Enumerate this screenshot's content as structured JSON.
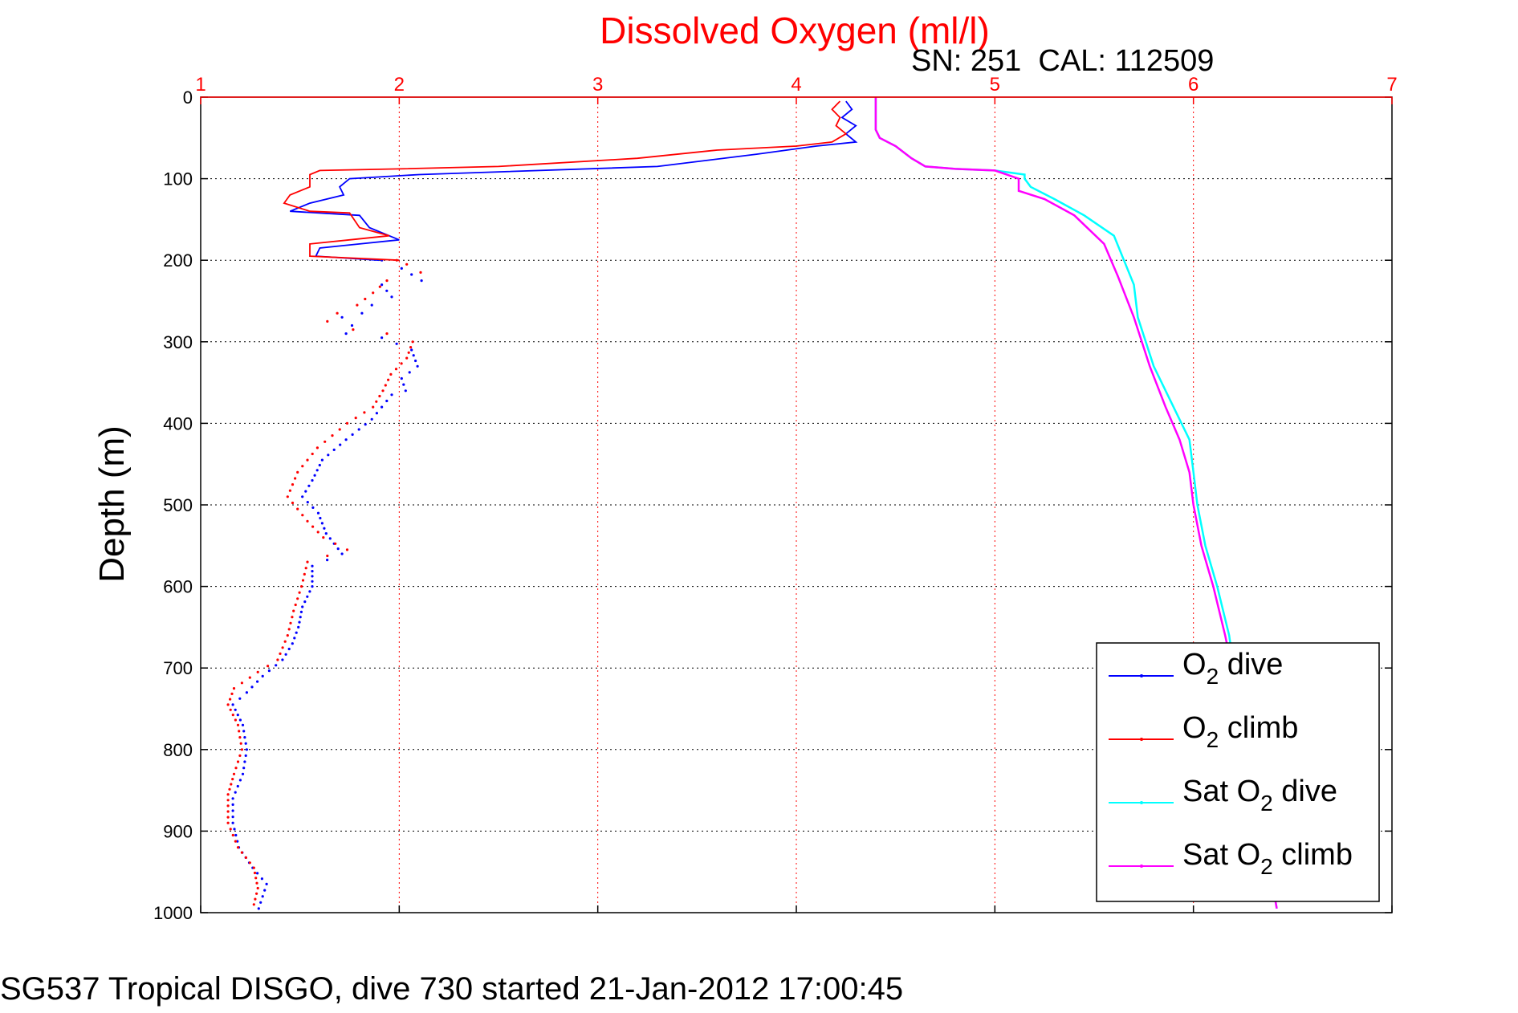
{
  "chart_data": {
    "type": "line",
    "title": "Dissolved Oxygen (ml/l)",
    "subtitle": "SN: 251  CAL: 112509",
    "xlabel": "",
    "ylabel": "Depth (m)",
    "xlim": [
      1,
      7
    ],
    "ylim": [
      0,
      1000
    ],
    "y_reversed": true,
    "x_axis_position": "top",
    "x_ticks": [
      "1",
      "2",
      "3",
      "4",
      "5",
      "6",
      "7"
    ],
    "y_ticks": [
      "0",
      "100",
      "200",
      "300",
      "400",
      "500",
      "600",
      "700",
      "800",
      "900",
      "1000"
    ],
    "grid": true,
    "legend_position": "bottom-right",
    "colors": {
      "title": "#ff0000",
      "x_ticks": "#ff0000",
      "grid_x": "#ff0000",
      "grid_y": "#000000"
    },
    "series": [
      {
        "name": "O2 dive",
        "name_prefix": "O",
        "name_sub": "2",
        "name_suffix": " dive",
        "color": "#0000ff",
        "style": "line_then_dots",
        "break_depth": 200,
        "points": [
          [
            4.25,
            5
          ],
          [
            4.28,
            15
          ],
          [
            4.23,
            25
          ],
          [
            4.3,
            35
          ],
          [
            4.25,
            45
          ],
          [
            4.3,
            55
          ],
          [
            4.1,
            60
          ],
          [
            3.8,
            70
          ],
          [
            3.3,
            85
          ],
          [
            2.1,
            95
          ],
          [
            1.75,
            100
          ],
          [
            1.7,
            110
          ],
          [
            1.72,
            120
          ],
          [
            1.55,
            130
          ],
          [
            1.45,
            140
          ],
          [
            1.8,
            145
          ],
          [
            1.85,
            160
          ],
          [
            2.0,
            175
          ],
          [
            1.8,
            180
          ],
          [
            1.6,
            185
          ],
          [
            1.58,
            195
          ],
          [
            1.9,
            200
          ],
          [
            2.0,
            210
          ],
          [
            2.1,
            225
          ],
          [
            1.9,
            230
          ],
          [
            1.95,
            245
          ],
          [
            1.85,
            255
          ],
          [
            1.8,
            265
          ],
          [
            1.7,
            270
          ],
          [
            1.75,
            280
          ],
          [
            1.72,
            290
          ],
          [
            1.9,
            295
          ],
          [
            2.05,
            310
          ],
          [
            2.08,
            330
          ],
          [
            2.0,
            345
          ],
          [
            2.02,
            360
          ],
          [
            1.95,
            365
          ],
          [
            1.85,
            395
          ],
          [
            1.72,
            420
          ],
          [
            1.6,
            445
          ],
          [
            1.55,
            470
          ],
          [
            1.5,
            490
          ],
          [
            1.58,
            510
          ],
          [
            1.62,
            535
          ],
          [
            1.7,
            560
          ],
          [
            1.55,
            575
          ],
          [
            1.55,
            600
          ],
          [
            1.5,
            625
          ],
          [
            1.48,
            650
          ],
          [
            1.45,
            670
          ],
          [
            1.4,
            690
          ],
          [
            1.3,
            710
          ],
          [
            1.22,
            730
          ],
          [
            1.15,
            745
          ],
          [
            1.2,
            770
          ],
          [
            1.22,
            800
          ],
          [
            1.2,
            830
          ],
          [
            1.15,
            860
          ],
          [
            1.15,
            890
          ],
          [
            1.18,
            920
          ],
          [
            1.25,
            945
          ],
          [
            1.32,
            965
          ],
          [
            1.3,
            980
          ],
          [
            1.28,
            995
          ]
        ]
      },
      {
        "name": "O2 climb",
        "name_prefix": "O",
        "name_sub": "2",
        "name_suffix": " climb",
        "color": "#ff0000",
        "style": "line_then_dots",
        "break_depth": 200,
        "points": [
          [
            4.22,
            5
          ],
          [
            4.18,
            15
          ],
          [
            4.22,
            25
          ],
          [
            4.2,
            35
          ],
          [
            4.25,
            45
          ],
          [
            4.18,
            55
          ],
          [
            4.0,
            60
          ],
          [
            3.6,
            65
          ],
          [
            3.2,
            75
          ],
          [
            2.5,
            85
          ],
          [
            2.0,
            88
          ],
          [
            1.6,
            90
          ],
          [
            1.55,
            95
          ],
          [
            1.55,
            110
          ],
          [
            1.45,
            120
          ],
          [
            1.42,
            130
          ],
          [
            1.55,
            140
          ],
          [
            1.75,
            142
          ],
          [
            1.8,
            160
          ],
          [
            1.95,
            170
          ],
          [
            1.75,
            175
          ],
          [
            1.55,
            180
          ],
          [
            1.55,
            195
          ],
          [
            2.0,
            200
          ],
          [
            2.05,
            205
          ],
          [
            2.12,
            215
          ],
          [
            1.95,
            225
          ],
          [
            1.88,
            240
          ],
          [
            1.8,
            255
          ],
          [
            1.7,
            265
          ],
          [
            1.65,
            275
          ],
          [
            1.78,
            285
          ],
          [
            1.95,
            290
          ],
          [
            2.08,
            300
          ],
          [
            2.05,
            320
          ],
          [
            1.97,
            340
          ],
          [
            1.93,
            360
          ],
          [
            1.88,
            380
          ],
          [
            1.75,
            400
          ],
          [
            1.6,
            430
          ],
          [
            1.5,
            460
          ],
          [
            1.45,
            490
          ],
          [
            1.55,
            520
          ],
          [
            1.63,
            540
          ],
          [
            1.75,
            555
          ],
          [
            1.55,
            570
          ],
          [
            1.52,
            600
          ],
          [
            1.48,
            630
          ],
          [
            1.45,
            660
          ],
          [
            1.4,
            690
          ],
          [
            1.3,
            705
          ],
          [
            1.18,
            725
          ],
          [
            1.15,
            745
          ],
          [
            1.2,
            770
          ],
          [
            1.22,
            800
          ],
          [
            1.18,
            830
          ],
          [
            1.15,
            855
          ],
          [
            1.15,
            890
          ],
          [
            1.2,
            920
          ],
          [
            1.28,
            945
          ],
          [
            1.3,
            970
          ],
          [
            1.28,
            990
          ]
        ]
      },
      {
        "name": "Sat O2 dive",
        "name_prefix": "Sat O",
        "name_sub": "2",
        "name_suffix": " dive",
        "color": "#00ffff",
        "style": "line",
        "points": [
          [
            4.4,
            0
          ],
          [
            4.4,
            40
          ],
          [
            4.42,
            50
          ],
          [
            4.5,
            60
          ],
          [
            4.58,
            75
          ],
          [
            4.65,
            85
          ],
          [
            4.8,
            88
          ],
          [
            5.0,
            90
          ],
          [
            5.15,
            95
          ],
          [
            5.15,
            100
          ],
          [
            5.18,
            110
          ],
          [
            5.3,
            125
          ],
          [
            5.45,
            145
          ],
          [
            5.6,
            170
          ],
          [
            5.65,
            200
          ],
          [
            5.7,
            230
          ],
          [
            5.72,
            270
          ],
          [
            5.8,
            330
          ],
          [
            5.9,
            380
          ],
          [
            5.98,
            420
          ],
          [
            6.0,
            460
          ],
          [
            6.02,
            500
          ],
          [
            6.06,
            550
          ],
          [
            6.12,
            600
          ],
          [
            6.18,
            660
          ],
          [
            6.22,
            730
          ],
          [
            6.28,
            800
          ],
          [
            6.33,
            870
          ],
          [
            6.38,
            940
          ],
          [
            6.42,
            995
          ]
        ]
      },
      {
        "name": "Sat O2 climb",
        "name_prefix": "Sat O",
        "name_sub": "2",
        "name_suffix": " climb",
        "color": "#ff00ff",
        "style": "line",
        "points": [
          [
            4.4,
            0
          ],
          [
            4.4,
            40
          ],
          [
            4.42,
            50
          ],
          [
            4.5,
            60
          ],
          [
            4.58,
            75
          ],
          [
            4.65,
            85
          ],
          [
            4.8,
            88
          ],
          [
            5.0,
            90
          ],
          [
            5.12,
            100
          ],
          [
            5.12,
            115
          ],
          [
            5.25,
            125
          ],
          [
            5.4,
            145
          ],
          [
            5.55,
            180
          ],
          [
            5.62,
            220
          ],
          [
            5.7,
            270
          ],
          [
            5.78,
            330
          ],
          [
            5.86,
            380
          ],
          [
            5.93,
            420
          ],
          [
            5.98,
            460
          ],
          [
            6.0,
            500
          ],
          [
            6.04,
            550
          ],
          [
            6.1,
            600
          ],
          [
            6.16,
            660
          ],
          [
            6.22,
            730
          ],
          [
            6.28,
            800
          ],
          [
            6.33,
            870
          ],
          [
            6.38,
            940
          ],
          [
            6.42,
            995
          ]
        ]
      }
    ]
  },
  "caption": "SG537 Tropical DISGO, dive 730 started 21-Jan-2012 17:00:45"
}
